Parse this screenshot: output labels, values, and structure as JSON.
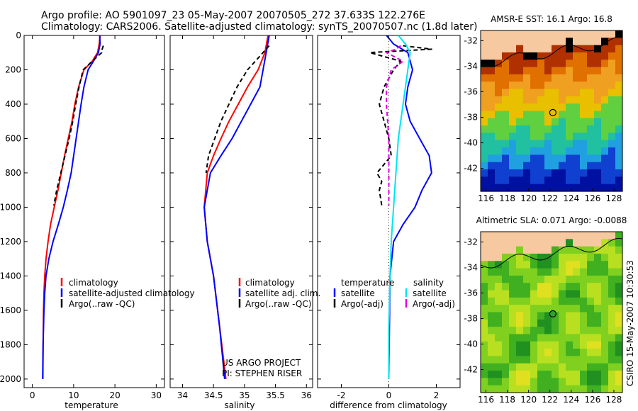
{
  "header": {
    "line1": "Argo profile: AO 5901097_23 05-May-2007 20070505_272 37.633S 122.276E",
    "line2": "Climatology: CARS2006. Satellite-adjusted climatology: synTS_20070507.nc (1.8d later)"
  },
  "colors": {
    "climatology": "#ff0000",
    "satellite": "#0000ff",
    "argo": "#000000",
    "satellite_sal_diff": "#00e5ee",
    "argo_sal_diff": "#e000e0",
    "land": "#f7c9a1"
  },
  "chart_data": [
    {
      "type": "line",
      "xlabel": "temperature",
      "ylabel": "",
      "xlim": [
        -2,
        32
      ],
      "ylim": [
        2050,
        0
      ],
      "xticks": [
        0,
        10,
        20,
        30
      ],
      "yticks": [
        0,
        200,
        400,
        600,
        800,
        1000,
        1200,
        1400,
        1600,
        1800,
        2000
      ],
      "series": [
        {
          "name": "climatology",
          "color": "#ff0000",
          "dash": "",
          "x": [
            16.4,
            16.2,
            15.8,
            14.5,
            12.5,
            11.2,
            10.3,
            9.6,
            8.7,
            7.8,
            7.0,
            6.2,
            5.3,
            4.4,
            3.8,
            3.3,
            3.0,
            2.8,
            2.7,
            2.6,
            2.55
          ],
          "y": [
            0,
            50,
            100,
            150,
            200,
            300,
            400,
            500,
            600,
            700,
            800,
            900,
            1000,
            1100,
            1200,
            1300,
            1400,
            1500,
            1600,
            1800,
            2000
          ]
        },
        {
          "name": "satellite-adjusted climatology",
          "color": "#0000ff",
          "dash": "",
          "x": [
            16.3,
            16.4,
            16.0,
            14.8,
            13.5,
            12.5,
            11.8,
            11.2,
            10.6,
            10.0,
            9.4,
            8.5,
            7.5,
            6.3,
            5.0,
            4.0,
            3.3,
            3.0,
            2.8,
            2.6,
            2.5
          ],
          "y": [
            0,
            50,
            100,
            150,
            200,
            300,
            400,
            500,
            600,
            700,
            800,
            900,
            1000,
            1100,
            1200,
            1300,
            1400,
            1500,
            1600,
            1800,
            2000
          ]
        },
        {
          "name": "Argo(..raw -QC)",
          "color": "#000000",
          "dash": "6,4",
          "x": [
            17.2,
            16.9,
            16.8,
            14.5,
            12.3,
            11.3,
            10.5,
            9.8,
            8.9,
            7.9,
            6.9,
            5.9,
            5.2
          ],
          "y": [
            60,
            80,
            100,
            150,
            200,
            300,
            400,
            500,
            600,
            700,
            800,
            900,
            990
          ]
        }
      ],
      "legend": {
        "position": "lower-right",
        "items": [
          "climatology",
          "satellite-adjusted climatology",
          "Argo(..raw -QC)"
        ]
      }
    },
    {
      "type": "line",
      "xlabel": "salinity",
      "ylabel": "",
      "xlim": [
        33.8,
        36.1
      ],
      "ylim": [
        2050,
        0
      ],
      "xticks": [
        34,
        34.5,
        35,
        35.5,
        36
      ],
      "yticks": [
        0,
        200,
        400,
        600,
        800,
        1000,
        1200,
        1400,
        1600,
        1800,
        2000
      ],
      "series": [
        {
          "name": "climatology",
          "color": "#ff0000",
          "dash": "",
          "x": [
            35.38,
            35.33,
            35.22,
            35.05,
            34.9,
            34.75,
            34.62,
            34.5,
            34.4,
            34.35,
            34.4,
            34.5,
            34.6,
            34.7
          ],
          "y": [
            0,
            100,
            200,
            300,
            400,
            500,
            600,
            700,
            800,
            1000,
            1200,
            1400,
            1700,
            2000
          ]
        },
        {
          "name": "satellite adj. clim.",
          "color": "#0000ff",
          "dash": "",
          "x": [
            35.4,
            35.35,
            35.3,
            35.25,
            35.1,
            34.95,
            34.8,
            34.62,
            34.45,
            34.35,
            34.4,
            34.5,
            34.6,
            34.68
          ],
          "y": [
            0,
            100,
            200,
            300,
            400,
            500,
            600,
            700,
            800,
            1000,
            1200,
            1400,
            1700,
            2000
          ]
        },
        {
          "name": "Argo(..raw -QC)",
          "color": "#000000",
          "dash": "6,4",
          "x": [
            35.4,
            35.3,
            35.05,
            34.88,
            34.75,
            34.62,
            34.52,
            34.42,
            34.38
          ],
          "y": [
            60,
            100,
            200,
            300,
            400,
            500,
            600,
            700,
            800
          ]
        }
      ],
      "legend": {
        "position": "lower-right",
        "items": [
          "climatology",
          "satellite adj. clim.",
          "Argo(..raw -QC)"
        ]
      },
      "annotations": [
        "US ARGO PROJECT",
        "PI: STEPHEN RISER"
      ]
    },
    {
      "type": "line",
      "xlabel": "difference from climatology",
      "ylabel": "",
      "xlim": [
        -3,
        3
      ],
      "ylim": [
        2050,
        0
      ],
      "xticks": [
        -2,
        0,
        2
      ],
      "yticks": [
        0,
        200,
        400,
        600,
        800,
        1000,
        1200,
        1400,
        1600,
        1800,
        2000
      ],
      "series": [
        {
          "name": "temperature satellite",
          "color": "#0000ff",
          "dash": "",
          "x": [
            -0.1,
            0.2,
            0.8,
            1.0,
            0.8,
            0.7,
            0.9,
            1.3,
            1.7,
            1.8,
            1.4,
            1.1,
            0.6,
            0.2,
            0.05,
            0.0
          ],
          "y": [
            0,
            50,
            100,
            200,
            300,
            400,
            500,
            600,
            700,
            800,
            900,
            1000,
            1100,
            1200,
            1400,
            2000
          ]
        },
        {
          "name": "temperature Argo(-adj)",
          "color": "#000000",
          "dash": "6,4",
          "x": [
            0.6,
            1.8,
            -0.8,
            0.5,
            0.2,
            -0.2,
            -0.4,
            -0.2,
            0.0,
            0.1,
            -0.5,
            -0.3,
            -0.4,
            -0.3
          ],
          "y": [
            60,
            80,
            100,
            150,
            200,
            300,
            400,
            500,
            600,
            700,
            800,
            850,
            900,
            990
          ]
        },
        {
          "name": "salinity satellite",
          "color": "#00e5ee",
          "dash": "",
          "x": [
            0.4,
            0.7,
            0.9,
            0.8,
            0.6,
            0.4,
            0.3,
            0.2,
            0.1,
            0.05,
            0.0,
            0.0
          ],
          "y": [
            0,
            50,
            100,
            200,
            400,
            600,
            800,
            1000,
            1200,
            1400,
            1700,
            2000
          ]
        },
        {
          "name": "salinity Argo(-adj)",
          "color": "#e000e0",
          "dash": "6,4",
          "x": [
            0.5,
            0.3,
            -0.1,
            0.6,
            0.1,
            -0.1,
            -0.1,
            0.0,
            0.0,
            0.0
          ],
          "y": [
            60,
            80,
            100,
            150,
            200,
            300,
            400,
            600,
            800,
            990
          ]
        }
      ],
      "legend": {
        "position": "lower-left",
        "groups": [
          "temperature",
          "salinity"
        ],
        "items": [
          "satellite",
          "Argo(-adj)",
          "satellite",
          "Argo(-adj)"
        ]
      }
    },
    {
      "type": "heatmap",
      "title": "AMSR-E SST: 16.1 Argo: 16.8",
      "xlim": [
        115.5,
        128.8
      ],
      "ylim": [
        -43.8,
        -31.2
      ],
      "xticks": [
        116,
        118,
        120,
        122,
        124,
        126,
        128
      ],
      "yticks": [
        -32,
        -34,
        -36,
        -38,
        -40,
        -42
      ],
      "marker": {
        "lon": 122.276,
        "lat": -37.633
      }
    },
    {
      "type": "heatmap",
      "title": "Altimetric SLA: 0.071 Argo: -0.0088",
      "xlim": [
        115.5,
        128.8
      ],
      "ylim": [
        -43.8,
        -31.2
      ],
      "xticks": [
        116,
        118,
        120,
        122,
        124,
        126,
        128
      ],
      "yticks": [
        -32,
        -34,
        -36,
        -38,
        -40,
        -42
      ],
      "marker": {
        "lon": 122.276,
        "lat": -37.633
      }
    }
  ],
  "footer": {
    "stamp": "CSIRO 15-May-2007 10:30:53"
  }
}
